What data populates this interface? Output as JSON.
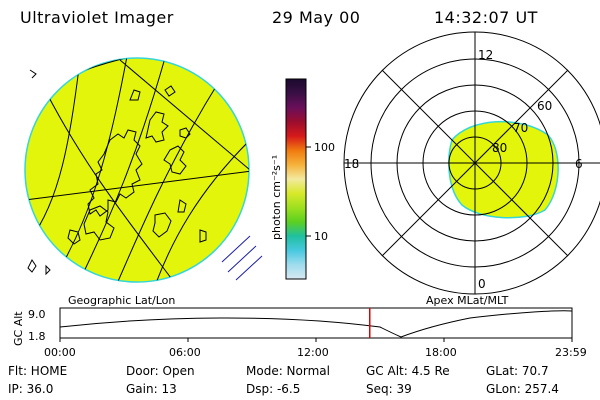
{
  "header": {
    "instrument": "Ultraviolet Imager",
    "date": "29 May 00",
    "time": "14:32:07 UT"
  },
  "colors": {
    "auroral_fill": "#e2f50a",
    "auroral_edge": "#36d6d6",
    "timeline_marker": "#e00000",
    "coast_dark": "#1d1da8"
  },
  "colorbar": {
    "unit_label": "photon cm⁻²s⁻¹",
    "tick_high": "100",
    "tick_low": "10",
    "gradient": [
      "#1a0a2e",
      "#3a0f45",
      "#6a0f5a",
      "#9b0d2e",
      "#d6191b",
      "#f07a10",
      "#f6b23c",
      "#f3e9a0",
      "#d8e92a",
      "#9ee020",
      "#5cd020",
      "#20c0a0",
      "#48c8e0",
      "#9fdcee",
      "#d8e8f0"
    ]
  },
  "geo_panel": {
    "label": "Geographic Lat/Lon"
  },
  "polar_panel": {
    "label": "Apex MLat/MLT",
    "mlt_labels": {
      "top": "12",
      "bottom": "0",
      "left": "18",
      "right": "6"
    },
    "lat_labels": [
      "60",
      "70",
      "80"
    ]
  },
  "timeline": {
    "ylabel": "GC Alt",
    "ytick_top": "9.0",
    "ytick_bottom": "1.8",
    "xticks": [
      "00:00",
      "06:00",
      "12:00",
      "18:00",
      "23:59"
    ],
    "current_time_fraction": 0.605
  },
  "status": {
    "filter": "Flt: HOME",
    "ip": "IP: 36.0",
    "door": "Door: Open",
    "gain": "Gain: 13",
    "mode": "Mode: Normal",
    "dsp": "Dsp:    -6.5",
    "gc_alt": "GC Alt: 4.5 Re",
    "seq": "Seq: 39",
    "glat": "GLat:   70.7",
    "glon": "GLon: 257.4"
  }
}
